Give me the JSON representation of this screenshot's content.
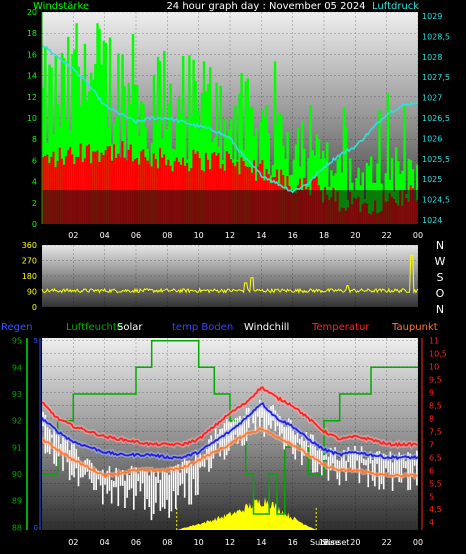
{
  "header": {
    "left": "Windstärke",
    "center": "24 hour graph day : November 05 2024",
    "right": "Luftdruck"
  },
  "legend": {
    "regen": "Regen",
    "luftfeuchte": "Luftfeuchte",
    "solar": "Solar",
    "temp_boden": "temp Boden",
    "windchill": "Windchill",
    "temperatur": "Temperatur",
    "taupunkt": "Taupunkt"
  },
  "compass": [
    "N",
    "W",
    "S",
    "O",
    "N"
  ],
  "sun_labels": {
    "rise": "Sunrise",
    "set": "Sunset"
  },
  "colors": {
    "wind_gust": "#00ff00",
    "wind_avg": "#ff0000",
    "pressure": "#33dddd",
    "direction": "#ffff00",
    "humidity": "#00aa00",
    "solar": "#ffff00",
    "temp_ground": "#2222dd",
    "windchill": "#ffffff",
    "temperature": "#ff2222",
    "dewpoint": "#ff7733"
  },
  "chart_data": [
    {
      "type": "bar",
      "name": "wind",
      "x_ticks": [
        "02",
        "04",
        "06",
        "08",
        "10",
        "12",
        "14",
        "16",
        "18",
        "20",
        "22",
        "00"
      ],
      "y_left_ticks": [
        "0",
        "2",
        "4",
        "6",
        "8",
        "10",
        "12",
        "14",
        "16",
        "18",
        "20"
      ],
      "y_right_ticks": [
        "1024",
        "1024,5",
        "1025",
        "1025,5",
        "1026",
        "1026,5",
        "1027",
        "1027,5",
        "1028",
        "1028,5",
        "1029"
      ],
      "ylim_left": [
        0,
        20
      ],
      "ylim_right": [
        1023.9,
        1029.1
      ],
      "gust_profile": [
        [
          0,
          10
        ],
        [
          2,
          11
        ],
        [
          4,
          12
        ],
        [
          6,
          10
        ],
        [
          8,
          10
        ],
        [
          10,
          10
        ],
        [
          12,
          9
        ],
        [
          14,
          8
        ],
        [
          16,
          7
        ],
        [
          17.5,
          6
        ],
        [
          19,
          4
        ],
        [
          21,
          4
        ],
        [
          23,
          4
        ],
        [
          24,
          4
        ]
      ],
      "avg_profile": [
        [
          0,
          6
        ],
        [
          2,
          6.5
        ],
        [
          4,
          7
        ],
        [
          6,
          6.5
        ],
        [
          8,
          6
        ],
        [
          10,
          6
        ],
        [
          12,
          6
        ],
        [
          14,
          5
        ],
        [
          16,
          4
        ],
        [
          17.5,
          3.5
        ],
        [
          19,
          2
        ],
        [
          21,
          2
        ],
        [
          23,
          2.5
        ],
        [
          24,
          3
        ]
      ],
      "pressure": [
        [
          0,
          1028.3
        ],
        [
          1,
          1028.0
        ],
        [
          2,
          1027.7
        ],
        [
          3,
          1027.3
        ],
        [
          4,
          1026.8
        ],
        [
          5,
          1026.6
        ],
        [
          6,
          1026.4
        ],
        [
          7,
          1026.5
        ],
        [
          8,
          1026.5
        ],
        [
          9,
          1026.4
        ],
        [
          10,
          1026.3
        ],
        [
          11,
          1026.2
        ],
        [
          12,
          1026.0
        ],
        [
          13,
          1025.5
        ],
        [
          14,
          1025.1
        ],
        [
          15,
          1024.9
        ],
        [
          16,
          1024.7
        ],
        [
          17,
          1024.9
        ],
        [
          18,
          1025.3
        ],
        [
          19,
          1025.6
        ],
        [
          20,
          1025.8
        ],
        [
          21,
          1026.2
        ],
        [
          22,
          1026.6
        ],
        [
          23,
          1026.8
        ],
        [
          24,
          1026.9
        ]
      ]
    },
    {
      "type": "line",
      "name": "wind direction",
      "y_ticks": [
        "0",
        "90",
        "180",
        "270",
        "360"
      ],
      "ylim": [
        0,
        360
      ],
      "baseline": 95,
      "spikes": [
        [
          13.0,
          140
        ],
        [
          13.4,
          170
        ],
        [
          19.5,
          125
        ],
        [
          23.6,
          300
        ]
      ]
    },
    {
      "type": "line",
      "name": "climate",
      "x_ticks": [
        "02",
        "04",
        "06",
        "08",
        "10",
        "12",
        "14",
        "16",
        "18",
        "20",
        "22",
        "00"
      ],
      "y_left_ticks": [
        "88",
        "89",
        "90",
        "91",
        "92",
        "93",
        "94",
        "95"
      ],
      "y_left_ylim": [
        87.9,
        95.1
      ],
      "y_right_ticks": [
        "4",
        "4,5",
        "5",
        "5,5",
        "6",
        "6,5",
        "7",
        "7,5",
        "8",
        "8,5",
        "9",
        "9,5",
        "10",
        "10,5",
        "11"
      ],
      "y_right_ylim": [
        3.7,
        11.1
      ],
      "humidity": [
        [
          0,
          90
        ],
        [
          1,
          90
        ],
        [
          1,
          92
        ],
        [
          2,
          92
        ],
        [
          2,
          93
        ],
        [
          6,
          93
        ],
        [
          6,
          94
        ],
        [
          7,
          94
        ],
        [
          7,
          95
        ],
        [
          10,
          95
        ],
        [
          10,
          94
        ],
        [
          11,
          94
        ],
        [
          11,
          93
        ],
        [
          12,
          93
        ],
        [
          12,
          92
        ],
        [
          13,
          92
        ],
        [
          13,
          90
        ],
        [
          13.5,
          90
        ],
        [
          13.5,
          88.5
        ],
        [
          14.5,
          88.5
        ],
        [
          14.5,
          90
        ],
        [
          15,
          90
        ],
        [
          15,
          88.5
        ],
        [
          15.5,
          88.5
        ],
        [
          15.5,
          91
        ],
        [
          17,
          91
        ],
        [
          17,
          90
        ],
        [
          18,
          90
        ],
        [
          18,
          92
        ],
        [
          19,
          92
        ],
        [
          19,
          93
        ],
        [
          21,
          93
        ],
        [
          21,
          94
        ],
        [
          24,
          94
        ]
      ],
      "temperature": [
        [
          0,
          8.6
        ],
        [
          1,
          8.0
        ],
        [
          2,
          7.7
        ],
        [
          3,
          7.5
        ],
        [
          4,
          7.3
        ],
        [
          5,
          7.2
        ],
        [
          6,
          7.1
        ],
        [
          7,
          7.0
        ],
        [
          8,
          7.0
        ],
        [
          9,
          7.0
        ],
        [
          10,
          7.2
        ],
        [
          11,
          7.7
        ],
        [
          12,
          8.2
        ],
        [
          13,
          8.6
        ],
        [
          14,
          9.2
        ],
        [
          14.5,
          9.0
        ],
        [
          15,
          8.8
        ],
        [
          16,
          8.5
        ],
        [
          17,
          8.0
        ],
        [
          18,
          7.5
        ],
        [
          19,
          7.2
        ],
        [
          20,
          7.3
        ],
        [
          21,
          7.2
        ],
        [
          22,
          7.0
        ],
        [
          23,
          7.0
        ],
        [
          24,
          7.0
        ]
      ],
      "temp_ground": [
        [
          0,
          8.0
        ],
        [
          1,
          7.5
        ],
        [
          2,
          7.1
        ],
        [
          3,
          6.9
        ],
        [
          4,
          6.7
        ],
        [
          5,
          6.6
        ],
        [
          6,
          6.6
        ],
        [
          7,
          6.6
        ],
        [
          8,
          6.5
        ],
        [
          9,
          6.5
        ],
        [
          10,
          6.7
        ],
        [
          11,
          7.1
        ],
        [
          12,
          7.5
        ],
        [
          13,
          8.0
        ],
        [
          14,
          8.6
        ],
        [
          14.5,
          8.3
        ],
        [
          15,
          8.0
        ],
        [
          16,
          7.7
        ],
        [
          17,
          7.2
        ],
        [
          18,
          6.8
        ],
        [
          19,
          6.6
        ],
        [
          20,
          6.7
        ],
        [
          21,
          6.6
        ],
        [
          22,
          6.5
        ],
        [
          23,
          6.5
        ],
        [
          24,
          6.5
        ]
      ],
      "dewpoint": [
        [
          0,
          7.2
        ],
        [
          1,
          6.8
        ],
        [
          2,
          6.4
        ],
        [
          3,
          6.1
        ],
        [
          4,
          5.8
        ],
        [
          5,
          5.9
        ],
        [
          6,
          6.0
        ],
        [
          7,
          6.0
        ],
        [
          8,
          6.0
        ],
        [
          9,
          6.1
        ],
        [
          10,
          6.4
        ],
        [
          11,
          6.7
        ],
        [
          12,
          7.0
        ],
        [
          13,
          7.4
        ],
        [
          14,
          7.6
        ],
        [
          15,
          7.3
        ],
        [
          16,
          7.0
        ],
        [
          17,
          6.6
        ],
        [
          18,
          6.2
        ],
        [
          19,
          6.0
        ],
        [
          20,
          6.0
        ],
        [
          21,
          5.9
        ],
        [
          22,
          5.8
        ],
        [
          23,
          5.8
        ],
        [
          24,
          5.8
        ]
      ],
      "windchill": [
        [
          0,
          7.8
        ],
        [
          1,
          7.0
        ],
        [
          2,
          6.5
        ],
        [
          3,
          6.0
        ],
        [
          4,
          5.6
        ],
        [
          5,
          5.5
        ],
        [
          6,
          5.6
        ],
        [
          7,
          5.5
        ],
        [
          8,
          5.6
        ],
        [
          9,
          5.8
        ],
        [
          10,
          6.3
        ],
        [
          11,
          7.0
        ],
        [
          12,
          7.5
        ],
        [
          13,
          7.9
        ],
        [
          14,
          8.3
        ],
        [
          15,
          7.8
        ],
        [
          16,
          7.3
        ],
        [
          17,
          6.9
        ],
        [
          18,
          6.5
        ],
        [
          19,
          6.3
        ],
        [
          20,
          6.4
        ],
        [
          21,
          6.3
        ],
        [
          22,
          6.2
        ],
        [
          23,
          6.2
        ],
        [
          24,
          6.2
        ]
      ],
      "solar_profile": [
        [
          8.6,
          0
        ],
        [
          9.5,
          4
        ],
        [
          10.5,
          8
        ],
        [
          11.5,
          13
        ],
        [
          12.5,
          18
        ],
        [
          13.5,
          26
        ],
        [
          14.3,
          30
        ],
        [
          15,
          22
        ],
        [
          16,
          12
        ],
        [
          17,
          4
        ],
        [
          17.5,
          0
        ]
      ],
      "sunrise_hour": 8.6,
      "sunset_hour": 17.5
    }
  ]
}
